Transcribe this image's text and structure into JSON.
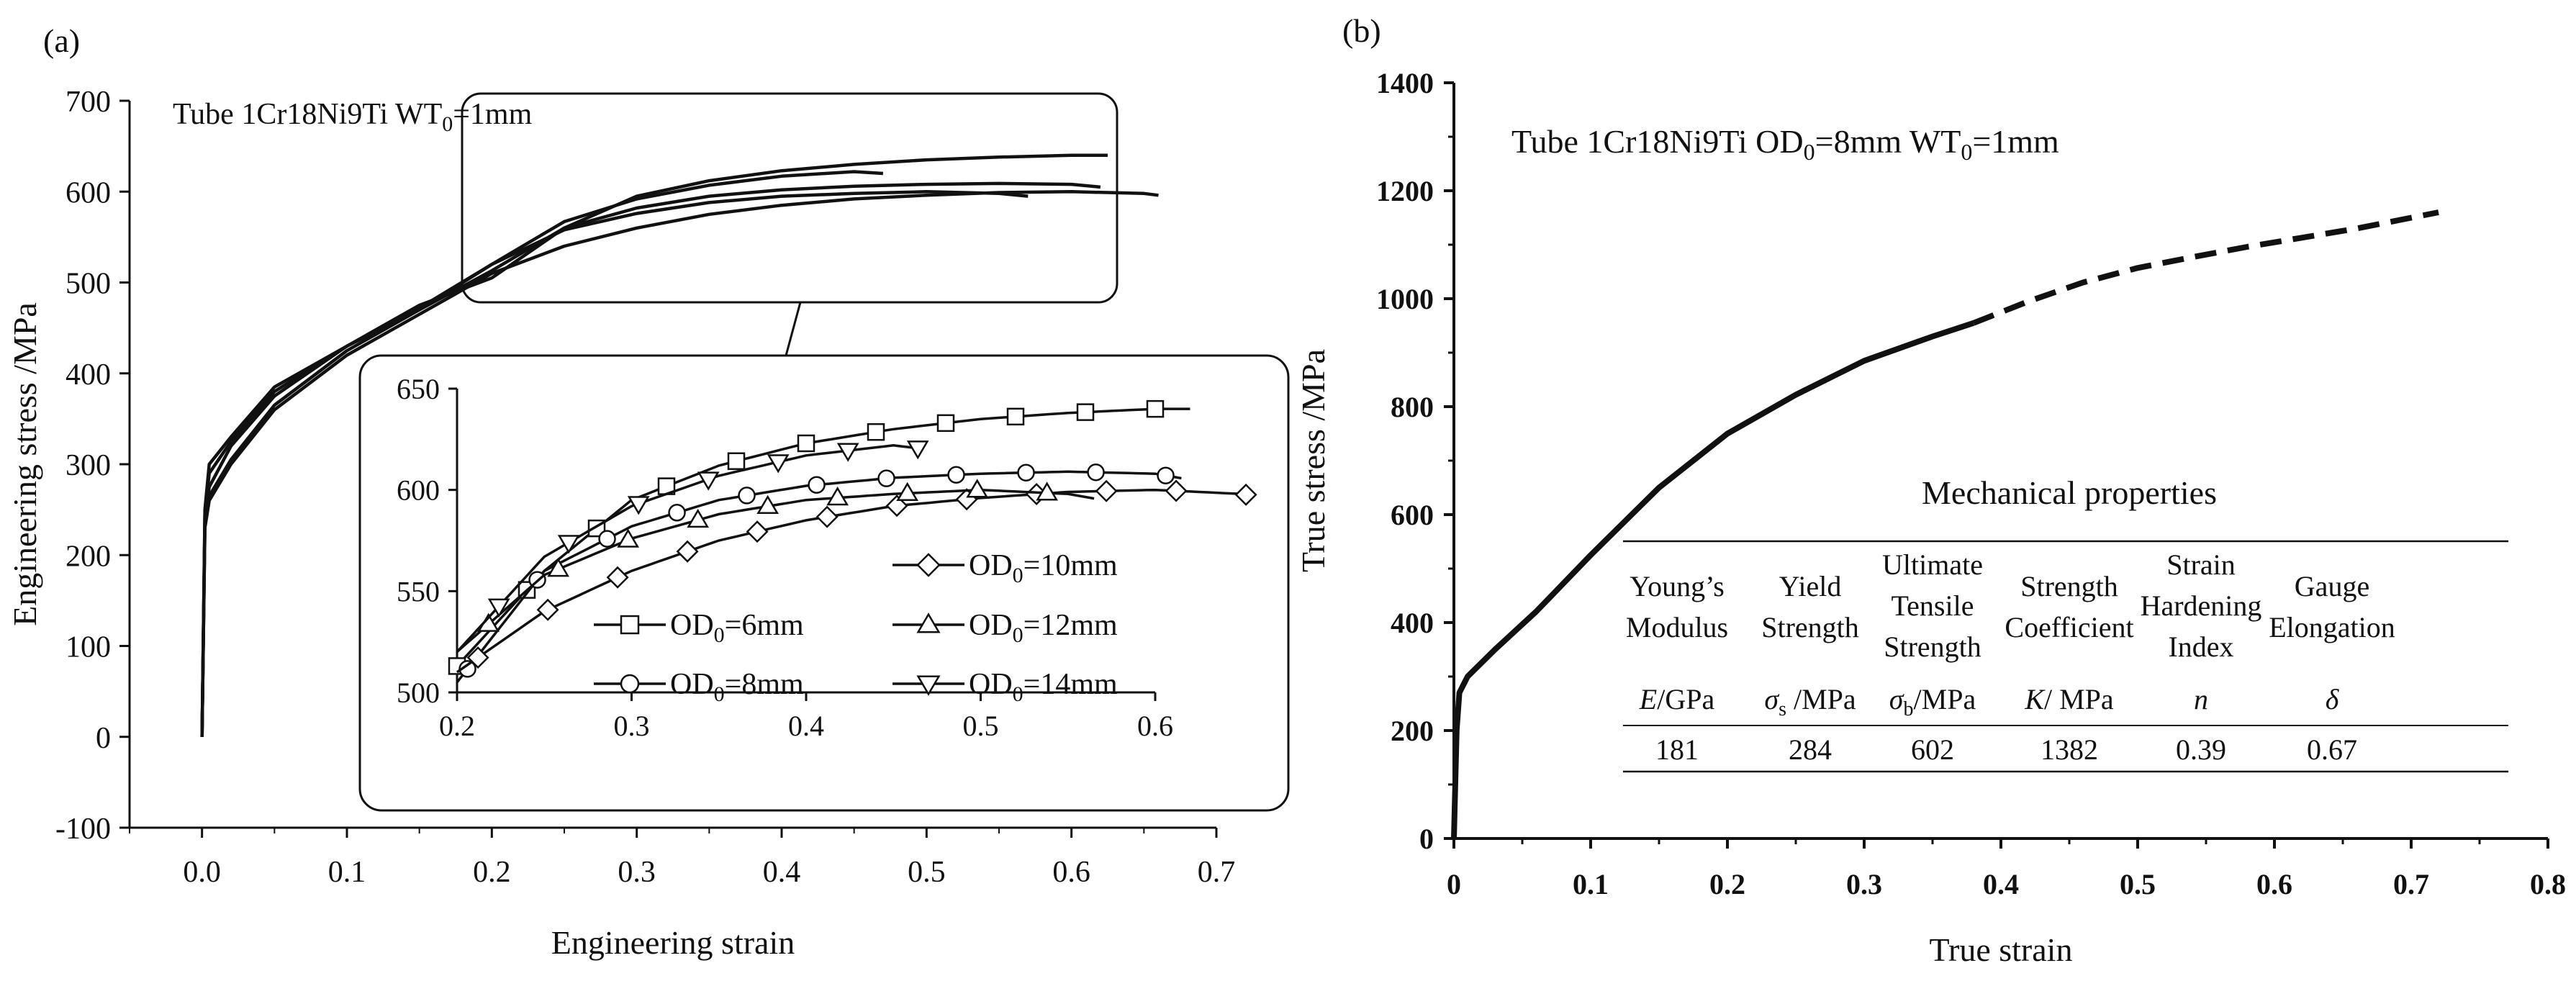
{
  "chart_data": [
    {
      "panel_label": "(a)",
      "type": "line",
      "title": "Tube 1Cr18Ni9Ti",
      "title_suffix_prefix": "WT",
      "title_suffix_sub": "0",
      "title_suffix_value": "=1mm",
      "xlabel": "Engineering strain",
      "ylabel": "Engineering stress  /MPa",
      "xlim": [
        -0.05,
        0.7
      ],
      "ylim": [
        -100,
        700
      ],
      "xticks": [
        "0.0",
        "0.1",
        "0.2",
        "0.3",
        "0.4",
        "0.5",
        "0.6",
        "0.7"
      ],
      "yticks": [
        "-100",
        "0",
        "100",
        "200",
        "300",
        "400",
        "500",
        "600",
        "700"
      ],
      "series": [
        {
          "name": "OD0=6mm",
          "label_prefix": "OD",
          "label_sub": "0",
          "label_value": "=6mm",
          "marker": "square",
          "x": [
            0,
            0.002,
            0.005,
            0.02,
            0.05,
            0.1,
            0.15,
            0.2,
            0.25,
            0.3,
            0.35,
            0.4,
            0.45,
            0.5,
            0.55,
            0.6,
            0.625
          ],
          "y": [
            0,
            250,
            300,
            330,
            385,
            430,
            470,
            513,
            560,
            595,
            612,
            623,
            630,
            635,
            638,
            640,
            640
          ]
        },
        {
          "name": "OD0=8mm",
          "label_prefix": "OD",
          "label_sub": "0",
          "label_value": "=8mm",
          "marker": "circle",
          "x": [
            0,
            0.002,
            0.005,
            0.02,
            0.05,
            0.1,
            0.15,
            0.2,
            0.25,
            0.3,
            0.35,
            0.4,
            0.45,
            0.5,
            0.55,
            0.6,
            0.62
          ],
          "y": [
            0,
            240,
            275,
            320,
            375,
            430,
            475,
            505,
            560,
            582,
            595,
            602,
            606,
            608,
            609,
            608,
            605
          ]
        },
        {
          "name": "OD0=10mm",
          "label_prefix": "OD",
          "label_sub": "0",
          "label_value": "=10mm",
          "marker": "diamond",
          "x": [
            0,
            0.002,
            0.005,
            0.02,
            0.05,
            0.1,
            0.15,
            0.2,
            0.25,
            0.3,
            0.35,
            0.4,
            0.45,
            0.5,
            0.55,
            0.6,
            0.65,
            0.66
          ],
          "y": [
            0,
            230,
            260,
            300,
            360,
            420,
            465,
            510,
            540,
            560,
            575,
            585,
            592,
            596,
            599,
            600,
            598,
            596
          ]
        },
        {
          "name": "OD0=12mm",
          "label_prefix": "OD",
          "label_sub": "0",
          "label_value": "=12mm",
          "marker": "triangle",
          "x": [
            0,
            0.002,
            0.005,
            0.02,
            0.05,
            0.1,
            0.15,
            0.2,
            0.25,
            0.3,
            0.35,
            0.4,
            0.45,
            0.5,
            0.55,
            0.57
          ],
          "y": [
            0,
            235,
            265,
            305,
            365,
            425,
            470,
            520,
            558,
            576,
            588,
            595,
            598,
            600,
            598,
            595
          ]
        },
        {
          "name": "OD0=14mm",
          "label_prefix": "OD",
          "label_sub": "0",
          "label_value": "=14mm",
          "marker": "triangle-down",
          "x": [
            0,
            0.002,
            0.005,
            0.02,
            0.05,
            0.1,
            0.15,
            0.2,
            0.25,
            0.3,
            0.35,
            0.4,
            0.45,
            0.47
          ],
          "y": [
            0,
            245,
            290,
            325,
            380,
            430,
            472,
            520,
            567,
            592,
            607,
            617,
            622,
            620
          ]
        }
      ],
      "inset": {
        "xlim": [
          0.2,
          0.6
        ],
        "ylim": [
          500,
          650
        ],
        "xticks": [
          "0.2",
          "0.3",
          "0.4",
          "0.5",
          "0.6"
        ],
        "yticks": [
          "500",
          "550",
          "600",
          "650"
        ]
      }
    },
    {
      "panel_label": "(b)",
      "type": "line",
      "title_prefix": "Tube 1Cr18Ni9Ti",
      "title_parts": [
        {
          "text": "OD"
        },
        {
          "sub": "0"
        },
        {
          "text": "=8mm WT"
        },
        {
          "sub": "0"
        },
        {
          "text": "=1mm"
        }
      ],
      "xlabel": "True strain",
      "ylabel": "True stress /MPa",
      "xlim": [
        0,
        0.8
      ],
      "ylim": [
        0,
        1400
      ],
      "xticks": [
        "0",
        "0.1",
        "0.2",
        "0.3",
        "0.4",
        "0.5",
        "0.6",
        "0.7",
        "0.8"
      ],
      "yticks": [
        "0",
        "200",
        "400",
        "600",
        "800",
        "1000",
        "1200",
        "1400"
      ],
      "series": [
        {
          "style": "solid",
          "x": [
            0,
            0.002,
            0.004,
            0.01,
            0.03,
            0.06,
            0.1,
            0.15,
            0.2,
            0.25,
            0.3,
            0.35,
            0.38
          ],
          "y": [
            0,
            200,
            270,
            300,
            350,
            420,
            525,
            650,
            750,
            822,
            885,
            930,
            955
          ]
        },
        {
          "style": "dashed",
          "x": [
            0.38,
            0.42,
            0.46,
            0.5,
            0.54,
            0.58,
            0.62,
            0.66,
            0.7,
            0.72
          ],
          "y": [
            955,
            995,
            1030,
            1057,
            1077,
            1096,
            1113,
            1130,
            1150,
            1160
          ]
        }
      ],
      "table": {
        "title": "Mechanical properties",
        "columns": [
          {
            "lines": [
              "Young’s",
              "Modulus"
            ],
            "sym": "E",
            "unit": "/GPa",
            "value": "181"
          },
          {
            "lines": [
              "Yield",
              "Strength"
            ],
            "sym": "σ",
            "sub": "s",
            "unit": " /MPa",
            "value": "284"
          },
          {
            "lines": [
              "Ultimate",
              "Tensile",
              "Strength"
            ],
            "sym": "σ",
            "sub": "b",
            "unit": "/MPa",
            "value": "602"
          },
          {
            "lines": [
              "Strength",
              "Coefficient"
            ],
            "sym": "K",
            "unit": "/ MPa",
            "value": "1382"
          },
          {
            "lines": [
              "Strain",
              "Hardening",
              "Index"
            ],
            "sym": "n",
            "unit": "",
            "value": "0.39"
          },
          {
            "lines": [
              "Gauge",
              "Elongation"
            ],
            "sym": "δ",
            "unit": "",
            "value": "0.67"
          }
        ]
      }
    }
  ]
}
